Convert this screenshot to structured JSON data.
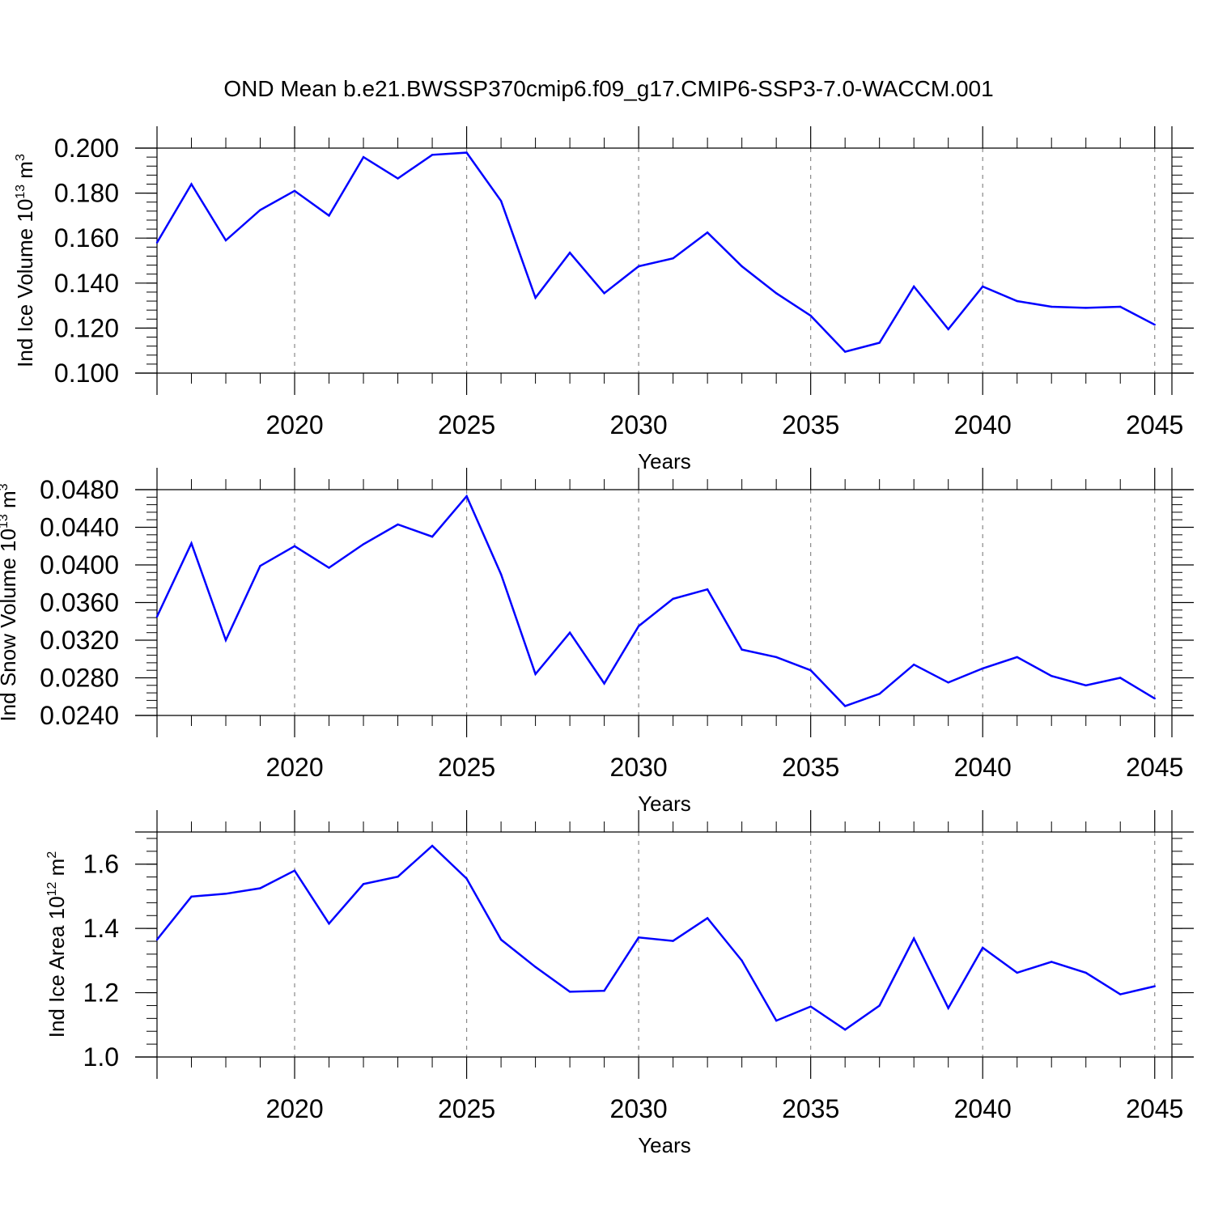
{
  "title": "OND Mean b.e21.BWSSP370cmip6.f09_g17.CMIP6-SSP3-7.0-WACCM.001",
  "line_color": "#0000ff",
  "chart_data": [
    {
      "type": "line",
      "ylabel": "Ind Ice Volume 10",
      "ylabel_exp": "13",
      "ylabel_unit": "m",
      "ylabel_unit_exp": "3",
      "xlabel": "Years",
      "xlim": [
        2016,
        2045.5
      ],
      "ylim": [
        0.1,
        0.2
      ],
      "yticks": [
        0.1,
        0.12,
        0.14,
        0.16,
        0.18,
        0.2
      ],
      "ytick_labels": [
        "0.100",
        "0.120",
        "0.140",
        "0.160",
        "0.180",
        "0.200"
      ],
      "xticks": [
        2020,
        2025,
        2030,
        2035,
        2040,
        2045
      ],
      "xtick_labels": [
        "2020",
        "2025",
        "2030",
        "2035",
        "2040",
        "2045"
      ],
      "x": [
        2016,
        2017,
        2018,
        2019,
        2020,
        2021,
        2022,
        2023,
        2024,
        2025,
        2026,
        2027,
        2028,
        2029,
        2030,
        2031,
        2032,
        2033,
        2034,
        2035,
        2036,
        2037,
        2038,
        2039,
        2040,
        2041,
        2042,
        2043,
        2044,
        2045
      ],
      "values": [
        0.158,
        0.184,
        0.159,
        0.1725,
        0.181,
        0.17,
        0.196,
        0.1865,
        0.197,
        0.198,
        0.1765,
        0.1335,
        0.1535,
        0.1355,
        0.1475,
        0.151,
        0.1625,
        0.1475,
        0.1355,
        0.1255,
        0.1095,
        0.1135,
        0.1385,
        0.1195,
        0.1385,
        0.132,
        0.1295,
        0.129,
        0.1295,
        0.1215
      ]
    },
    {
      "type": "line",
      "ylabel": "Ind Snow Volume 10",
      "ylabel_exp": "13",
      "ylabel_unit": "m",
      "ylabel_unit_exp": "3",
      "xlabel": "Years",
      "xlim": [
        2016,
        2045.5
      ],
      "ylim": [
        0.024,
        0.048
      ],
      "yticks": [
        0.024,
        0.028,
        0.032,
        0.036,
        0.04,
        0.044,
        0.048
      ],
      "ytick_labels": [
        "0.0240",
        "0.0280",
        "0.0320",
        "0.0360",
        "0.0400",
        "0.0440",
        "0.0480"
      ],
      "xticks": [
        2020,
        2025,
        2030,
        2035,
        2040,
        2045
      ],
      "xtick_labels": [
        "2020",
        "2025",
        "2030",
        "2035",
        "2040",
        "2045"
      ],
      "x": [
        2016,
        2017,
        2018,
        2019,
        2020,
        2021,
        2022,
        2023,
        2024,
        2025,
        2026,
        2027,
        2028,
        2029,
        2030,
        2031,
        2032,
        2033,
        2034,
        2035,
        2036,
        2037,
        2038,
        2039,
        2040,
        2041,
        2042,
        2043,
        2044,
        2045
      ],
      "values": [
        0.0345,
        0.0423,
        0.032,
        0.0399,
        0.042,
        0.0397,
        0.0422,
        0.0443,
        0.043,
        0.0473,
        0.039,
        0.0284,
        0.0328,
        0.0274,
        0.0335,
        0.0364,
        0.0374,
        0.031,
        0.0302,
        0.0288,
        0.025,
        0.0263,
        0.0294,
        0.0275,
        0.029,
        0.0302,
        0.0282,
        0.0272,
        0.028,
        0.0258
      ]
    },
    {
      "type": "line",
      "ylabel": "Ind Ice Area 10",
      "ylabel_exp": "12",
      "ylabel_unit": "m",
      "ylabel_unit_exp": "2",
      "xlabel": "Years",
      "xlim": [
        2016,
        2045.5
      ],
      "ylim": [
        1.0,
        1.7
      ],
      "yticks": [
        1.0,
        1.2,
        1.4,
        1.6
      ],
      "ytick_labels": [
        "1.0",
        "1.2",
        "1.4",
        "1.6"
      ],
      "xticks": [
        2020,
        2025,
        2030,
        2035,
        2040,
        2045
      ],
      "xtick_labels": [
        "2020",
        "2025",
        "2030",
        "2035",
        "2040",
        "2045"
      ],
      "x": [
        2016,
        2017,
        2018,
        2019,
        2020,
        2021,
        2022,
        2023,
        2024,
        2025,
        2026,
        2027,
        2028,
        2029,
        2030,
        2031,
        2032,
        2033,
        2034,
        2035,
        2036,
        2037,
        2038,
        2039,
        2040,
        2041,
        2042,
        2043,
        2044,
        2045
      ],
      "values": [
        1.365,
        1.499,
        1.508,
        1.525,
        1.58,
        1.415,
        1.538,
        1.561,
        1.657,
        1.555,
        1.365,
        1.28,
        1.203,
        1.206,
        1.372,
        1.361,
        1.432,
        1.3,
        1.113,
        1.157,
        1.085,
        1.16,
        1.369,
        1.152,
        1.34,
        1.262,
        1.296,
        1.262,
        1.195,
        1.22
      ]
    }
  ]
}
